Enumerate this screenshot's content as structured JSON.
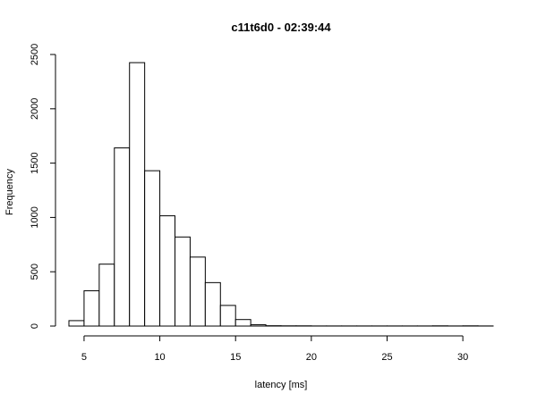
{
  "chart_data": {
    "type": "bar",
    "title": "c11t6d0 - 02:39:44",
    "xlabel": "latency [ms]",
    "ylabel": "Frequency",
    "bin_width": 1,
    "bins": [
      {
        "start": 4,
        "end": 5,
        "count": 50
      },
      {
        "start": 5,
        "end": 6,
        "count": 325
      },
      {
        "start": 6,
        "end": 7,
        "count": 570
      },
      {
        "start": 7,
        "end": 8,
        "count": 1640
      },
      {
        "start": 8,
        "end": 9,
        "count": 2425
      },
      {
        "start": 9,
        "end": 10,
        "count": 1430
      },
      {
        "start": 10,
        "end": 11,
        "count": 1015
      },
      {
        "start": 11,
        "end": 12,
        "count": 820
      },
      {
        "start": 12,
        "end": 13,
        "count": 635
      },
      {
        "start": 13,
        "end": 14,
        "count": 400
      },
      {
        "start": 14,
        "end": 15,
        "count": 190
      },
      {
        "start": 15,
        "end": 16,
        "count": 60
      },
      {
        "start": 16,
        "end": 17,
        "count": 12
      },
      {
        "start": 17,
        "end": 18,
        "count": 3
      },
      {
        "start": 18,
        "end": 19,
        "count": 2
      },
      {
        "start": 19,
        "end": 20,
        "count": 2
      },
      {
        "start": 20,
        "end": 21,
        "count": 1
      },
      {
        "start": 21,
        "end": 22,
        "count": 1
      },
      {
        "start": 22,
        "end": 23,
        "count": 1
      },
      {
        "start": 23,
        "end": 24,
        "count": 1
      },
      {
        "start": 24,
        "end": 25,
        "count": 1
      },
      {
        "start": 25,
        "end": 26,
        "count": 1
      },
      {
        "start": 26,
        "end": 27,
        "count": 1
      },
      {
        "start": 27,
        "end": 28,
        "count": 1
      },
      {
        "start": 28,
        "end": 29,
        "count": 2
      },
      {
        "start": 29,
        "end": 30,
        "count": 1
      },
      {
        "start": 30,
        "end": 31,
        "count": 2
      },
      {
        "start": 31,
        "end": 32,
        "count": 1
      }
    ],
    "xlim": [
      4,
      32
    ],
    "ylim": [
      0,
      2500
    ],
    "x_ticks": [
      5,
      10,
      15,
      20,
      25,
      30
    ],
    "y_ticks": [
      0,
      500,
      1000,
      1500,
      2000,
      2500
    ],
    "grid": false,
    "legend": "none"
  }
}
